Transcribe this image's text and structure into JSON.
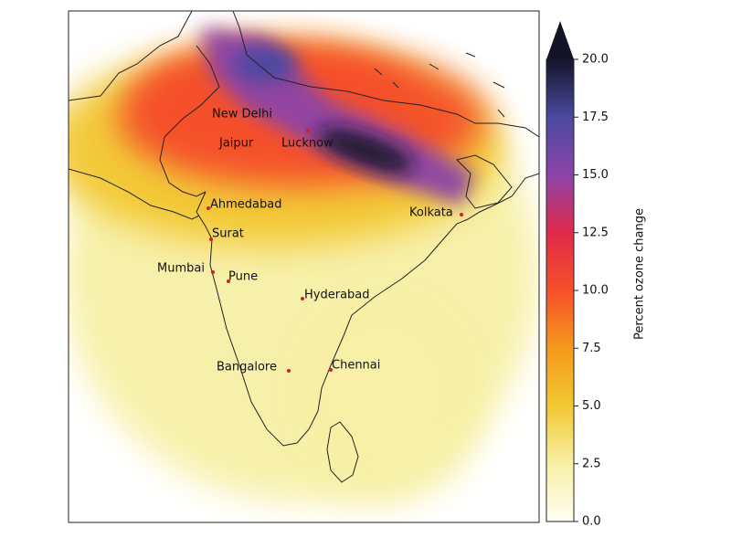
{
  "map": {
    "cities": [
      "New Delhi",
      "Jaipur",
      "Lucknow",
      "Ahmedabad",
      "Surat",
      "Mumbai",
      "Pune",
      "Hyderabad",
      "Kolkata",
      "Bangalore",
      "Chennai"
    ],
    "colorbar": {
      "label": "Percent ozone change",
      "range": [
        0,
        20
      ],
      "ticks": [
        {
          "value": 0,
          "label": "0.0"
        },
        2.5,
        {
          "value": 5,
          "label": "5.0"
        },
        7.5,
        {
          "value": 10,
          "label": "10.0"
        },
        12.5,
        {
          "value": 15,
          "label": "15.0"
        },
        17.5,
        {
          "value": 20,
          "label": "20.0"
        }
      ],
      "colors": [
        "#fffff2",
        "#f7f0a6",
        "#f2c832",
        "#f59a1c",
        "#f5502a",
        "#e02a4a",
        "#8c44a8",
        "#4a4aa0",
        "#141428"
      ]
    }
  }
}
